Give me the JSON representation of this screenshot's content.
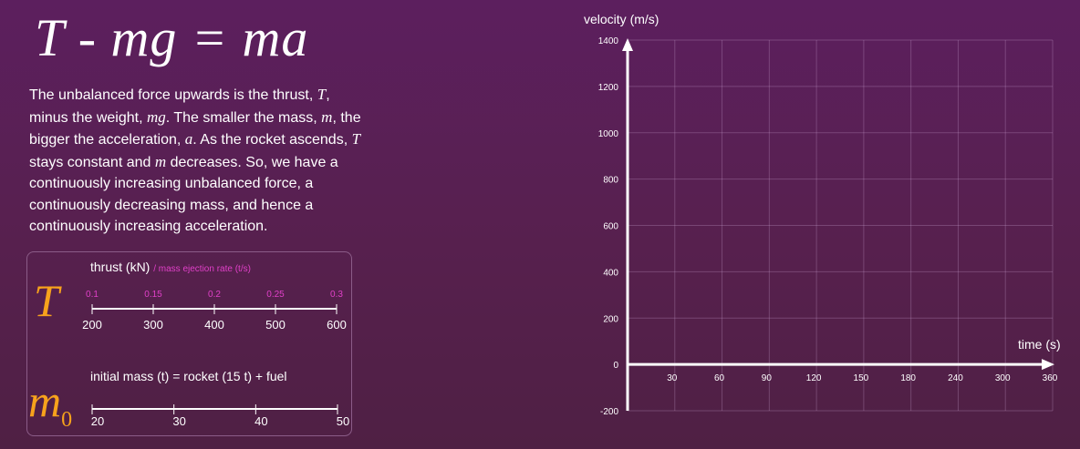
{
  "equation": "T - mg = ma",
  "description": {
    "p1": "The unbalanced force upwards is the thrust, ",
    "T1": "T",
    "p2": ", minus the weight, ",
    "mg": "mg",
    "p3": ".  The smaller the mass, ",
    "m1": "m",
    "p4": ", the bigger the acceleration, ",
    "a": "a",
    "p5": ".  As the rocket ascends, ",
    "T2": "T",
    "p6": " stays constant and ",
    "m2": "m",
    "p7": " decreases.  So, we have a continuously increasing unbalanced force, a continuously decreasing mass, and hence a continuously increasing acceleration."
  },
  "thrust_slider": {
    "label": "thrust (kN)",
    "sublabel": "/ mass ejection rate (t/s)",
    "symbol": "T",
    "top_ticks": [
      "0.1",
      "0.15",
      "0.2",
      "0.25",
      "0.3"
    ],
    "bottom_ticks": [
      "200",
      "300",
      "400",
      "500",
      "600"
    ]
  },
  "mass_slider": {
    "label": "initial mass (t) = rocket (15 t) + fuel",
    "symbol": "m",
    "symbol_sub": "0",
    "ticks": [
      "20",
      "30",
      "40",
      "50"
    ]
  },
  "colors": {
    "accent_orange": "#f7a21c",
    "accent_magenta": "#e040c8"
  },
  "chart_data": {
    "type": "line",
    "ylabel": "velocity (m/s)",
    "xlabel": "time (s)",
    "x_ticks": [
      "30",
      "60",
      "90",
      "120",
      "150",
      "180",
      "240",
      "300",
      "360"
    ],
    "y_ticks": [
      "1400",
      "1200",
      "1000",
      "800",
      "600",
      "400",
      "200",
      "0",
      "-200"
    ],
    "ylim": [
      -200,
      1400
    ],
    "grid": true,
    "series": []
  }
}
